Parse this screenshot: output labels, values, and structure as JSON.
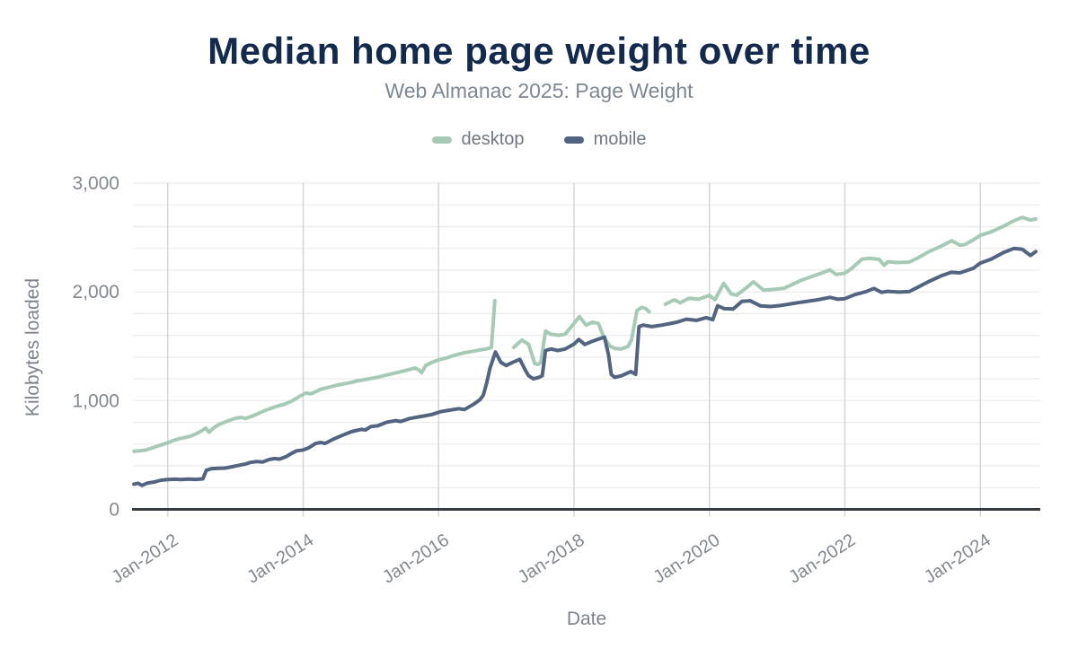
{
  "header": {
    "title": "Median home page weight over time",
    "subtitle": "Web Almanac 2025: Page Weight"
  },
  "chart_data": {
    "type": "line",
    "title": "Median home page weight over time",
    "subtitle": "Web Almanac 2025: Page Weight",
    "xlabel": "Date",
    "ylabel": "Kilobytes loaded",
    "x_unit": "decimal_year",
    "x_range": [
      2011.486,
      2024.886
    ],
    "y_range": [
      0,
      3000
    ],
    "y_gridline_step": 200,
    "grid": "on",
    "legend_position": "top",
    "y_ticks": [
      {
        "value": 0,
        "label": "0"
      },
      {
        "value": 1000,
        "label": "1,000"
      },
      {
        "value": 2000,
        "label": "2,000"
      },
      {
        "value": 3000,
        "label": "3,000"
      }
    ],
    "x_ticks": [
      {
        "value": 2012,
        "label": "Jan-2012"
      },
      {
        "value": 2014,
        "label": "Jan-2014"
      },
      {
        "value": 2016,
        "label": "Jan-2016"
      },
      {
        "value": 2018,
        "label": "Jan-2018"
      },
      {
        "value": 2020,
        "label": "Jan-2020"
      },
      {
        "value": 2022,
        "label": "Jan-2022"
      },
      {
        "value": 2024,
        "label": "Jan-2024"
      }
    ],
    "colors": {
      "title": "#142a4d",
      "subtitle": "#7e8893",
      "legend_text": "#6f7880",
      "tick_text": "#82888f",
      "axis_title": "#7c838c",
      "grid_h": "#ebebeb",
      "grid_v": "#d5d5d5",
      "axis_line": "#363b41",
      "background": "#ffffff"
    },
    "series": [
      {
        "name": "desktop",
        "color": "#a6cab6",
        "points": [
          [
            2011.5,
            535
          ],
          [
            2011.58,
            538
          ],
          [
            2011.67,
            545
          ],
          [
            2011.75,
            560
          ],
          [
            2011.83,
            578
          ],
          [
            2011.92,
            596
          ],
          [
            2012.0,
            612
          ],
          [
            2012.08,
            632
          ],
          [
            2012.17,
            650
          ],
          [
            2012.25,
            660
          ],
          [
            2012.33,
            672
          ],
          [
            2012.42,
            695
          ],
          [
            2012.5,
            722
          ],
          [
            2012.56,
            748
          ],
          [
            2012.61,
            708
          ],
          [
            2012.67,
            745
          ],
          [
            2012.75,
            778
          ],
          [
            2012.83,
            800
          ],
          [
            2012.92,
            820
          ],
          [
            2013.0,
            838
          ],
          [
            2013.08,
            845
          ],
          [
            2013.15,
            836
          ],
          [
            2013.25,
            858
          ],
          [
            2013.33,
            880
          ],
          [
            2013.42,
            905
          ],
          [
            2013.51,
            925
          ],
          [
            2013.62,
            950
          ],
          [
            2013.73,
            968
          ],
          [
            2013.83,
            995
          ],
          [
            2013.95,
            1040
          ],
          [
            2014.04,
            1070
          ],
          [
            2014.12,
            1063
          ],
          [
            2014.26,
            1104
          ],
          [
            2014.4,
            1126
          ],
          [
            2014.53,
            1146
          ],
          [
            2014.66,
            1160
          ],
          [
            2014.79,
            1180
          ],
          [
            2014.97,
            1200
          ],
          [
            2015.1,
            1215
          ],
          [
            2015.24,
            1236
          ],
          [
            2015.37,
            1255
          ],
          [
            2015.5,
            1274
          ],
          [
            2015.65,
            1300
          ],
          [
            2015.71,
            1282
          ],
          [
            2015.75,
            1256
          ],
          [
            2015.81,
            1323
          ],
          [
            2015.9,
            1351
          ],
          [
            2016.0,
            1375
          ],
          [
            2016.12,
            1393
          ],
          [
            2016.25,
            1420
          ],
          [
            2016.38,
            1440
          ],
          [
            2016.52,
            1455
          ],
          [
            2016.61,
            1466
          ],
          [
            2016.7,
            1475
          ],
          [
            2016.78,
            1488
          ],
          [
            2016.83,
            1920
          ],
          [
            2016.9,
            null
          ],
          [
            2017.11,
            1490
          ],
          [
            2017.23,
            1557
          ],
          [
            2017.33,
            1516
          ],
          [
            2017.42,
            1340
          ],
          [
            2017.47,
            1333
          ],
          [
            2017.51,
            1351
          ],
          [
            2017.58,
            1640
          ],
          [
            2017.65,
            1612
          ],
          [
            2017.78,
            1600
          ],
          [
            2017.87,
            1612
          ],
          [
            2017.96,
            1680
          ],
          [
            2018.08,
            1772
          ],
          [
            2018.18,
            1694
          ],
          [
            2018.27,
            1722
          ],
          [
            2018.36,
            1710
          ],
          [
            2018.44,
            1584
          ],
          [
            2018.53,
            1502
          ],
          [
            2018.6,
            1480
          ],
          [
            2018.7,
            1475
          ],
          [
            2018.8,
            1500
          ],
          [
            2018.85,
            1560
          ],
          [
            2018.93,
            1830
          ],
          [
            2019.0,
            1858
          ],
          [
            2019.06,
            1845
          ],
          [
            2019.11,
            1817
          ],
          [
            2019.2,
            null
          ],
          [
            2019.35,
            1886
          ],
          [
            2019.48,
            1927
          ],
          [
            2019.57,
            1900
          ],
          [
            2019.7,
            1941
          ],
          [
            2019.84,
            1932
          ],
          [
            2020.0,
            1968
          ],
          [
            2020.08,
            1927
          ],
          [
            2020.21,
            2078
          ],
          [
            2020.32,
            1982
          ],
          [
            2020.4,
            1968
          ],
          [
            2020.55,
            2040
          ],
          [
            2020.65,
            2092
          ],
          [
            2020.8,
            2015
          ],
          [
            2020.95,
            2023
          ],
          [
            2021.1,
            2032
          ],
          [
            2021.35,
            2105
          ],
          [
            2021.6,
            2160
          ],
          [
            2021.78,
            2202
          ],
          [
            2021.87,
            2160
          ],
          [
            2022.0,
            2172
          ],
          [
            2022.1,
            2215
          ],
          [
            2022.25,
            2300
          ],
          [
            2022.38,
            2308
          ],
          [
            2022.51,
            2298
          ],
          [
            2022.58,
            2245
          ],
          [
            2022.64,
            2278
          ],
          [
            2022.75,
            2270
          ],
          [
            2022.95,
            2274
          ],
          [
            2023.06,
            2306
          ],
          [
            2023.23,
            2366
          ],
          [
            2023.42,
            2420
          ],
          [
            2023.58,
            2470
          ],
          [
            2023.7,
            2428
          ],
          [
            2023.77,
            2435
          ],
          [
            2023.9,
            2478
          ],
          [
            2024.0,
            2520
          ],
          [
            2024.16,
            2552
          ],
          [
            2024.34,
            2602
          ],
          [
            2024.5,
            2655
          ],
          [
            2024.62,
            2685
          ],
          [
            2024.74,
            2660
          ],
          [
            2024.82,
            2670
          ]
        ]
      },
      {
        "name": "mobile",
        "color": "#536480",
        "points": [
          [
            2011.5,
            232
          ],
          [
            2011.56,
            240
          ],
          [
            2011.62,
            220
          ],
          [
            2011.7,
            242
          ],
          [
            2011.8,
            252
          ],
          [
            2011.9,
            268
          ],
          [
            2012.0,
            274
          ],
          [
            2012.1,
            277
          ],
          [
            2012.2,
            274
          ],
          [
            2012.3,
            278
          ],
          [
            2012.42,
            276
          ],
          [
            2012.52,
            281
          ],
          [
            2012.57,
            360
          ],
          [
            2012.65,
            375
          ],
          [
            2012.75,
            377
          ],
          [
            2012.85,
            380
          ],
          [
            2012.95,
            392
          ],
          [
            2013.05,
            405
          ],
          [
            2013.15,
            418
          ],
          [
            2013.22,
            432
          ],
          [
            2013.32,
            440
          ],
          [
            2013.4,
            436
          ],
          [
            2013.5,
            459
          ],
          [
            2013.58,
            467
          ],
          [
            2013.65,
            462
          ],
          [
            2013.75,
            485
          ],
          [
            2013.82,
            512
          ],
          [
            2013.9,
            538
          ],
          [
            2014.0,
            546
          ],
          [
            2014.09,
            569
          ],
          [
            2014.18,
            605
          ],
          [
            2014.26,
            616
          ],
          [
            2014.32,
            606
          ],
          [
            2014.44,
            644
          ],
          [
            2014.57,
            679
          ],
          [
            2014.71,
            714
          ],
          [
            2014.79,
            726
          ],
          [
            2014.86,
            735
          ],
          [
            2014.92,
            730
          ],
          [
            2015.0,
            762
          ],
          [
            2015.1,
            768
          ],
          [
            2015.24,
            802
          ],
          [
            2015.37,
            816
          ],
          [
            2015.44,
            808
          ],
          [
            2015.57,
            835
          ],
          [
            2015.65,
            844
          ],
          [
            2015.78,
            858
          ],
          [
            2015.9,
            872
          ],
          [
            2016.03,
            899
          ],
          [
            2016.16,
            912
          ],
          [
            2016.3,
            926
          ],
          [
            2016.38,
            918
          ],
          [
            2016.52,
            967
          ],
          [
            2016.61,
            1008
          ],
          [
            2016.66,
            1050
          ],
          [
            2016.71,
            1160
          ],
          [
            2016.76,
            1300
          ],
          [
            2016.84,
            1447
          ],
          [
            2016.92,
            1351
          ],
          [
            2017.0,
            1323
          ],
          [
            2017.09,
            1351
          ],
          [
            2017.2,
            1379
          ],
          [
            2017.28,
            1282
          ],
          [
            2017.33,
            1228
          ],
          [
            2017.4,
            1200
          ],
          [
            2017.48,
            1214
          ],
          [
            2017.53,
            1228
          ],
          [
            2017.58,
            1461
          ],
          [
            2017.66,
            1475
          ],
          [
            2017.76,
            1461
          ],
          [
            2017.87,
            1475
          ],
          [
            2018.0,
            1520
          ],
          [
            2018.07,
            1562
          ],
          [
            2018.16,
            1516
          ],
          [
            2018.26,
            1543
          ],
          [
            2018.38,
            1570
          ],
          [
            2018.45,
            1584
          ],
          [
            2018.51,
            1420
          ],
          [
            2018.55,
            1241
          ],
          [
            2018.6,
            1214
          ],
          [
            2018.7,
            1228
          ],
          [
            2018.84,
            1268
          ],
          [
            2018.91,
            1241
          ],
          [
            2018.96,
            1680
          ],
          [
            2019.02,
            1694
          ],
          [
            2019.15,
            1680
          ],
          [
            2019.3,
            1694
          ],
          [
            2019.52,
            1721
          ],
          [
            2019.66,
            1749
          ],
          [
            2019.81,
            1738
          ],
          [
            2019.95,
            1763
          ],
          [
            2020.05,
            1745
          ],
          [
            2020.12,
            1872
          ],
          [
            2020.22,
            1845
          ],
          [
            2020.35,
            1842
          ],
          [
            2020.48,
            1913
          ],
          [
            2020.6,
            1918
          ],
          [
            2020.75,
            1872
          ],
          [
            2020.9,
            1865
          ],
          [
            2021.05,
            1874
          ],
          [
            2021.3,
            1900
          ],
          [
            2021.6,
            1927
          ],
          [
            2021.78,
            1949
          ],
          [
            2021.9,
            1932
          ],
          [
            2022.0,
            1938
          ],
          [
            2022.15,
            1975
          ],
          [
            2022.3,
            2000
          ],
          [
            2022.43,
            2031
          ],
          [
            2022.54,
            1996
          ],
          [
            2022.63,
            2005
          ],
          [
            2022.8,
            1998
          ],
          [
            2022.95,
            2002
          ],
          [
            2023.06,
            2037
          ],
          [
            2023.23,
            2092
          ],
          [
            2023.42,
            2147
          ],
          [
            2023.57,
            2180
          ],
          [
            2023.7,
            2175
          ],
          [
            2023.9,
            2218
          ],
          [
            2024.0,
            2265
          ],
          [
            2024.16,
            2300
          ],
          [
            2024.34,
            2360
          ],
          [
            2024.5,
            2400
          ],
          [
            2024.62,
            2392
          ],
          [
            2024.74,
            2335
          ],
          [
            2024.82,
            2370
          ]
        ]
      }
    ]
  }
}
